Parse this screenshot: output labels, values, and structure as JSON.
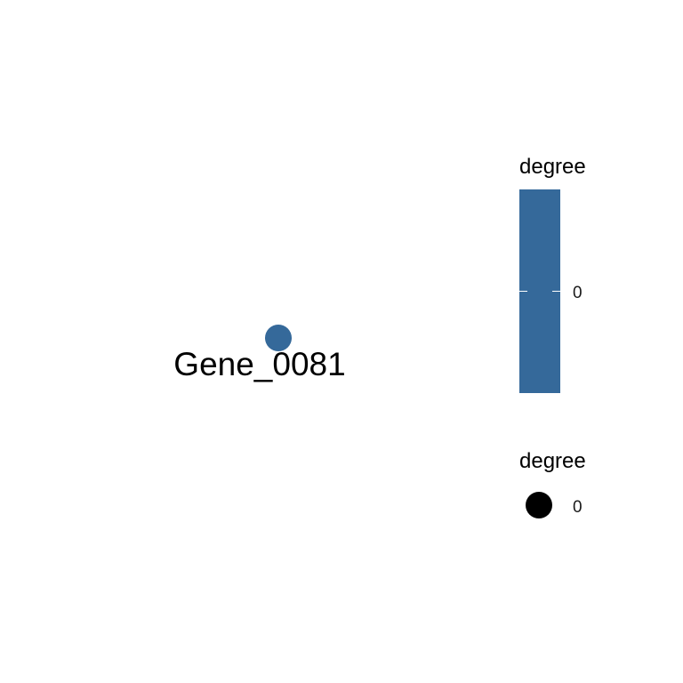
{
  "chart_data": {
    "type": "scatter",
    "title": "",
    "xlabel": "",
    "ylabel": "",
    "grid": false,
    "colors": {
      "node": "#35699A",
      "colorbar": "#35699A",
      "size_key": "#000000",
      "background": "#FFFFFF"
    },
    "nodes": [
      {
        "label": "Gene_0081",
        "degree": 0
      }
    ],
    "legends": {
      "color": {
        "title": "degree",
        "kind": "colorbar",
        "ticks": [
          "0"
        ],
        "placement": "right"
      },
      "size": {
        "title": "degree",
        "kind": "points",
        "entries": [
          {
            "label": "0",
            "value": 0
          }
        ],
        "placement": "right"
      }
    }
  }
}
